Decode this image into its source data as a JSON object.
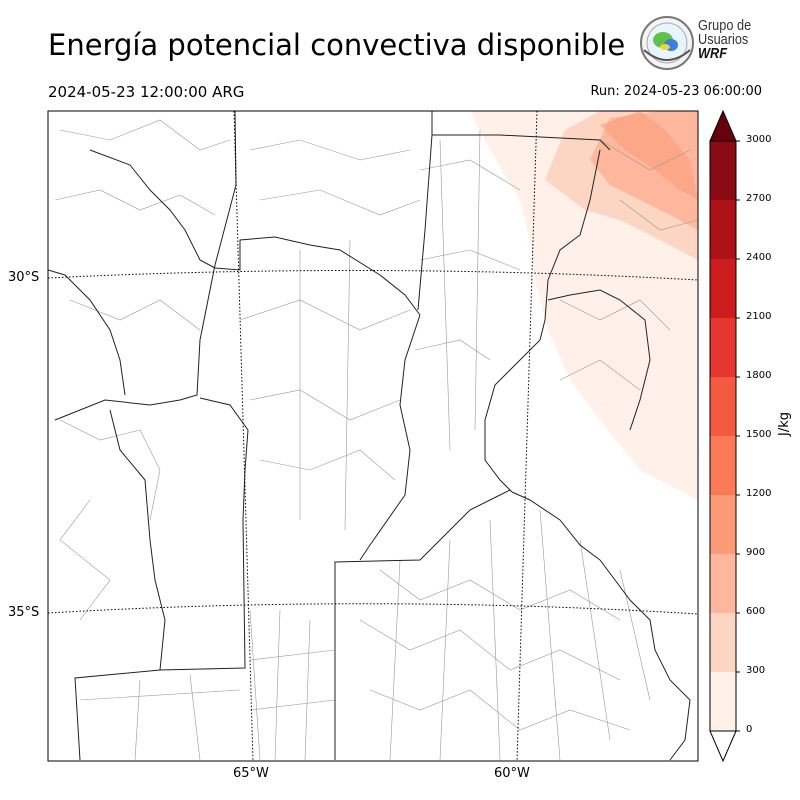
{
  "title": "Energía potencial convectiva disponible",
  "valid_time": "2024-05-23 12:00:00 ARG",
  "run_time": "Run: 2024-05-23 06:00:00",
  "logo": {
    "line1": "Grupo de",
    "line2": "Usuarios",
    "line3": "WRF"
  },
  "map": {
    "lat_labels": [
      "30°S",
      "35°S"
    ],
    "lon_labels": [
      "65°W",
      "60°W"
    ],
    "field": "CAPE",
    "max_region": "northeast corner",
    "colors": {
      "coast": "#222222",
      "division": "#999999",
      "grid": "#000000"
    }
  },
  "colorbar": {
    "unit": "J/kg",
    "ticks": [
      "0",
      "300",
      "600",
      "900",
      "1200",
      "1500",
      "1800",
      "2100",
      "2400",
      "2700",
      "3000"
    ],
    "colors": [
      "#fff0e9",
      "#fdd5c3",
      "#fcb79d",
      "#fc9a77",
      "#fa7a58",
      "#f45a3f",
      "#e63630",
      "#cd1c1d",
      "#ae1219",
      "#8a0b14",
      "#67000d"
    ],
    "extend": "both"
  }
}
